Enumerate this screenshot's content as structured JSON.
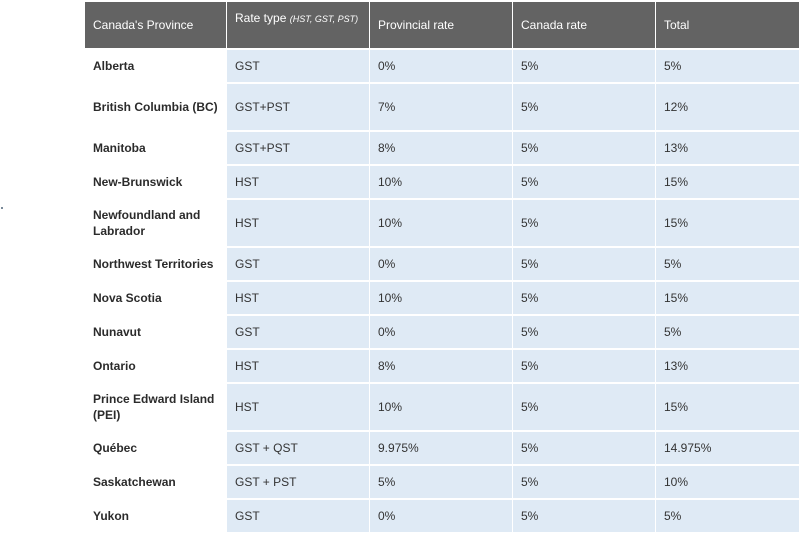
{
  "header": {
    "province": "Canada's Province",
    "rate_type": "Rate type",
    "rate_type_hint": "(HST, GST, PST)",
    "provincial_rate": "Provincial rate",
    "canada_rate": "Canada rate",
    "total": "Total"
  },
  "rows": [
    {
      "province": "Alberta",
      "type": "GST",
      "provincial": "0%",
      "canada": "5%",
      "total": "5%"
    },
    {
      "province": "British Columbia (BC)",
      "type": "GST+PST",
      "provincial": "7%",
      "canada": "5%",
      "total": "12%"
    },
    {
      "province": "Manitoba",
      "type": "GST+PST",
      "provincial": "8%",
      "canada": "5%",
      "total": "13%"
    },
    {
      "province": "New-Brunswick",
      "type": "HST",
      "provincial": "10%",
      "canada": "5%",
      "total": "15%"
    },
    {
      "province": "Newfoundland and Labrador",
      "type": "HST",
      "provincial": "10%",
      "canada": "5%",
      "total": "15%"
    },
    {
      "province": "Northwest Territories",
      "type": "GST",
      "provincial": "0%",
      "canada": "5%",
      "total": "5%"
    },
    {
      "province": "Nova Scotia",
      "type": "HST",
      "provincial": "10%",
      "canada": "5%",
      "total": "15%"
    },
    {
      "province": "Nunavut",
      "type": "GST",
      "provincial": "0%",
      "canada": "5%",
      "total": "5%"
    },
    {
      "province": "Ontario",
      "type": "HST",
      "provincial": "8%",
      "canada": "5%",
      "total": "13%"
    },
    {
      "province": "Prince Edward Island (PEI)",
      "type": "HST",
      "provincial": "10%",
      "canada": "5%",
      "total": "15%"
    },
    {
      "province": "Québec",
      "type": "GST + QST",
      "provincial": "9.975%",
      "canada": "5%",
      "total": "14.975%"
    },
    {
      "province": "Saskatchewan",
      "type": "GST + PST",
      "provincial": "5%",
      "canada": "5%",
      "total": "10%"
    },
    {
      "province": "Yukon",
      "type": "GST",
      "provincial": "0%",
      "canada": "5%",
      "total": "5%"
    }
  ]
}
